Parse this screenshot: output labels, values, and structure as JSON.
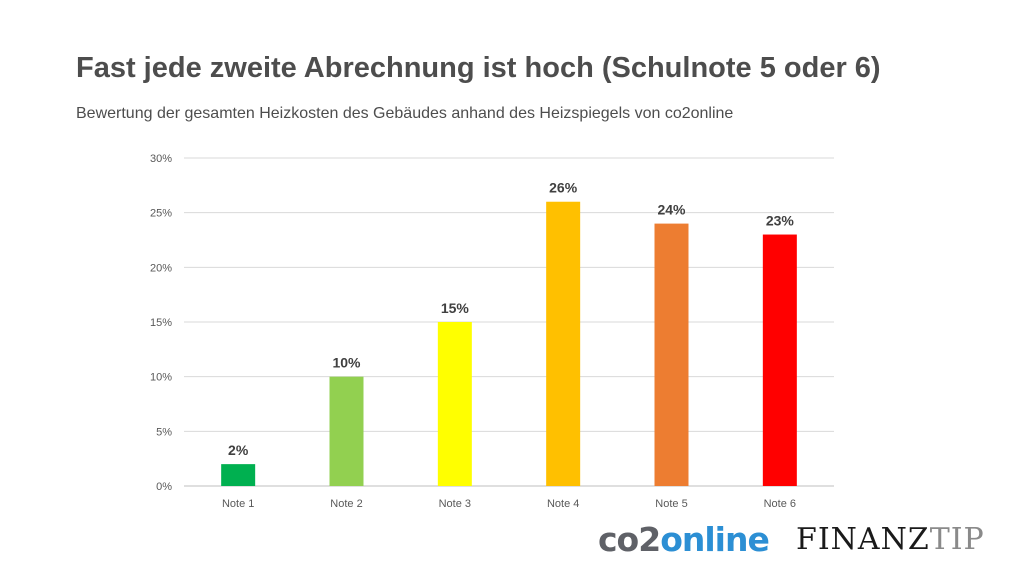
{
  "header": {
    "title": "Fast jede zweite Abrechnung ist hoch (Schulnote 5 oder 6)",
    "subtitle": "Bewertung der gesamten Heizkosten des Gebäudes anhand des Heizspiegels von co2online"
  },
  "chart_data": {
    "type": "bar",
    "categories": [
      "Note 1",
      "Note 2",
      "Note 3",
      "Note 4",
      "Note 5",
      "Note 6"
    ],
    "values": [
      2,
      10,
      15,
      26,
      24,
      23
    ],
    "data_labels": [
      "2%",
      "10%",
      "15%",
      "26%",
      "24%",
      "23%"
    ],
    "colors": [
      "#00b050",
      "#92d050",
      "#ffff00",
      "#ffc000",
      "#ed7d31",
      "#ff0000"
    ],
    "y_ticks": [
      0,
      5,
      10,
      15,
      20,
      25,
      30
    ],
    "y_tick_labels": [
      "0%",
      "5%",
      "10%",
      "15%",
      "20%",
      "25%",
      "30%"
    ],
    "ylim": [
      0,
      30
    ],
    "grid": true,
    "legend": false
  },
  "logos": {
    "co2online_part1": "co2",
    "co2online_part2": "online",
    "finanztip_part1": "FINANZ",
    "finanztip_part2": "TIP"
  }
}
